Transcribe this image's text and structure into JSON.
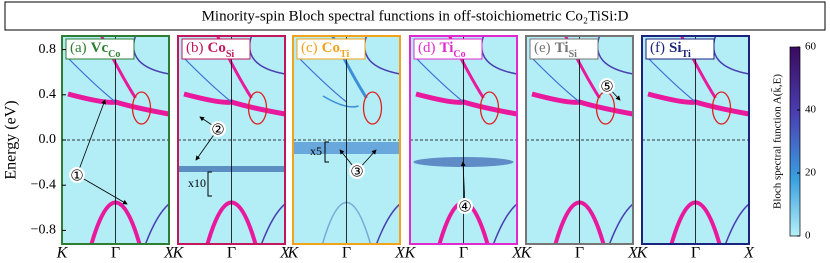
{
  "title": "Minority-spin Bloch spectral functions in off-stoichiometric Co₂TiSi:D",
  "chart_data": [
    {
      "type": "spectral",
      "label": "(a)",
      "species": "Vc",
      "site": "Co",
      "color": "#2e7d32",
      "categories": [
        "K",
        "Γ",
        "X"
      ],
      "ylabel": "Energy (eV)",
      "ylim": [
        -0.92,
        0.92
      ],
      "yticks": [
        0.8,
        0.4,
        {
          "value": 0,
          "label": "0.0"
        },
        {
          "value": -0.4,
          "label": "−0.4"
        },
        {
          "value": -0.8,
          "label": "−0.8"
        }
      ]
    },
    {
      "type": "spectral",
      "label": "(b)",
      "species": "Co",
      "site": "Si",
      "color": "#c2185b",
      "categories": [
        "K",
        "Γ",
        "X"
      ],
      "ylim": [
        -0.92,
        0.92
      ]
    },
    {
      "type": "spectral",
      "label": "(c)",
      "species": "Co",
      "site": "Ti",
      "color": "#f2a31b",
      "categories": [
        "K",
        "Γ",
        "X"
      ],
      "ylim": [
        -0.92,
        0.92
      ]
    },
    {
      "type": "spectral",
      "label": "(d)",
      "species": "Ti",
      "site": "Co",
      "color": "#e02ad0",
      "categories": [
        "K",
        "Γ",
        "X"
      ],
      "ylim": [
        -0.92,
        0.92
      ]
    },
    {
      "type": "spectral",
      "label": "(e)",
      "species": "Ti",
      "site": "Si",
      "color": "#757575",
      "categories": [
        "K",
        "Γ",
        "X"
      ],
      "ylim": [
        -0.92,
        0.92
      ]
    },
    {
      "type": "spectral",
      "label": "(f)",
      "species": "Si",
      "site": "Ti",
      "color": "#1a237e",
      "categories": [
        "K",
        "Γ",
        "X"
      ],
      "ylim": [
        -0.92,
        0.92
      ]
    },
    {
      "type": "colorbar",
      "label": "Bloch spectral function A(k̃,E)",
      "ylim": [
        0,
        60
      ],
      "yticks": [
        0,
        20,
        40,
        60
      ]
    }
  ],
  "annotations": [
    "①",
    "②",
    "③",
    "④",
    "⑤",
    "x10",
    "x5"
  ]
}
